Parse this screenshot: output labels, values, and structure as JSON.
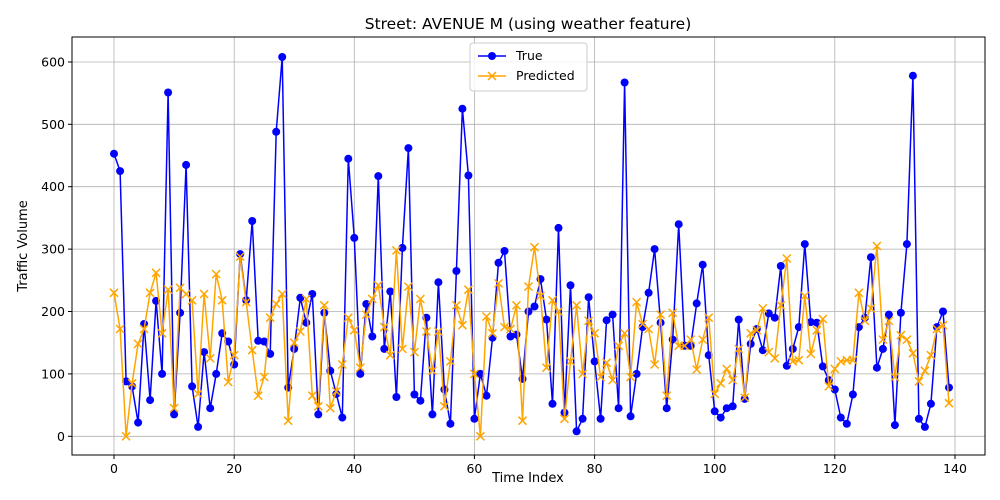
{
  "chart_data": {
    "type": "line",
    "title": "Street: AVENUE M (using weather feature)",
    "xlabel": "Time Index",
    "ylabel": "Traffic Volume",
    "xlim": [
      -7,
      145
    ],
    "ylim": [
      -30,
      640
    ],
    "xticks": [
      0,
      20,
      40,
      60,
      80,
      100,
      120,
      140
    ],
    "yticks": [
      0,
      100,
      200,
      300,
      400,
      500,
      600
    ],
    "grid": true,
    "legend_position": "top-center",
    "series": [
      {
        "name": "True",
        "color": "#0000ff",
        "marker": "circle",
        "values": [
          453,
          425,
          88,
          80,
          22,
          180,
          58,
          217,
          100,
          551,
          35,
          198,
          435,
          80,
          15,
          135,
          45,
          100,
          165,
          152,
          115,
          292,
          218,
          345,
          153,
          152,
          132,
          488,
          608,
          78,
          140,
          222,
          182,
          228,
          35,
          198,
          105,
          68,
          30,
          445,
          318,
          100,
          212,
          160,
          417,
          140,
          232,
          63,
          302,
          462,
          67,
          57,
          190,
          35,
          247,
          75,
          20,
          265,
          525,
          418,
          28,
          100,
          65,
          158,
          278,
          297,
          160,
          163,
          92,
          200,
          208,
          252,
          187,
          52,
          334,
          38,
          242,
          8,
          28,
          223,
          120,
          28,
          186,
          195,
          45,
          567,
          32,
          100,
          175,
          230,
          300,
          182,
          45,
          155,
          340,
          145,
          145,
          213,
          275,
          130,
          40,
          30,
          45,
          48,
          187,
          60,
          148,
          172,
          138,
          197,
          190,
          273,
          113,
          140,
          175,
          308,
          183,
          182,
          112,
          90,
          75,
          30,
          20,
          67,
          175,
          190,
          287,
          110,
          140,
          195,
          18,
          198,
          308,
          578,
          28,
          15,
          52,
          175,
          200,
          78
        ]
      },
      {
        "name": "Predicted",
        "color": "#ffa500",
        "marker": "x",
        "values": [
          230,
          172,
          0,
          85,
          148,
          172,
          230,
          262,
          165,
          235,
          45,
          238,
          228,
          218,
          68,
          228,
          125,
          260,
          218,
          87,
          130,
          288,
          215,
          138,
          65,
          95,
          190,
          212,
          228,
          25,
          150,
          168,
          220,
          65,
          48,
          210,
          45,
          72,
          115,
          190,
          170,
          110,
          195,
          220,
          242,
          175,
          130,
          298,
          140,
          240,
          135,
          220,
          168,
          105,
          168,
          48,
          120,
          210,
          178,
          235,
          100,
          0,
          192,
          165,
          245,
          175,
          172,
          210,
          25,
          240,
          303,
          225,
          110,
          218,
          200,
          28,
          120,
          210,
          100,
          185,
          165,
          95,
          118,
          90,
          145,
          165,
          95,
          215,
          180,
          172,
          115,
          195,
          65,
          198,
          145,
          145,
          155,
          107,
          155,
          190,
          68,
          85,
          108,
          90,
          140,
          62,
          165,
          170,
          205,
          135,
          125,
          210,
          285,
          120,
          122,
          225,
          132,
          170,
          188,
          80,
          108,
          120,
          122,
          122,
          230,
          185,
          205,
          305,
          155,
          185,
          95,
          162,
          155,
          133,
          88,
          105,
          130,
          172,
          178,
          53
        ]
      }
    ]
  }
}
